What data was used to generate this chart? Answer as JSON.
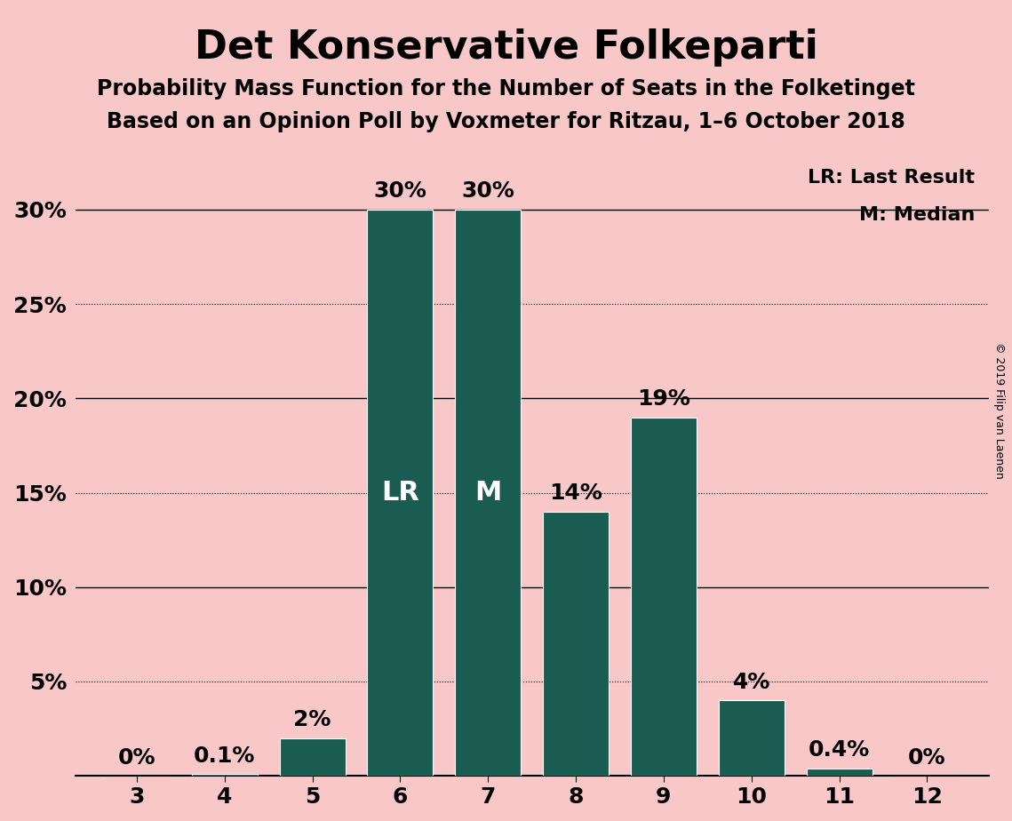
{
  "title": "Det Konservative Folkeparti",
  "subtitle1": "Probability Mass Function for the Number of Seats in the Folketinget",
  "subtitle2": "Based on an Opinion Poll by Voxmeter for Ritzau, 1–6 October 2018",
  "copyright": "© 2019 Filip van Laenen",
  "categories": [
    3,
    4,
    5,
    6,
    7,
    8,
    9,
    10,
    11,
    12
  ],
  "values": [
    0.0,
    0.1,
    2.0,
    30.0,
    30.0,
    14.0,
    19.0,
    4.0,
    0.4,
    0.0
  ],
  "bar_color": "#1a5c52",
  "background_color": "#f8c8c8",
  "LR_seat": 6,
  "M_seat": 7,
  "ylim": [
    0,
    33
  ],
  "legend_lr": "LR: Last Result",
  "legend_m": "M: Median",
  "title_fontsize": 32,
  "subtitle_fontsize": 17,
  "bar_label_fontsize": 18,
  "axis_fontsize": 18,
  "inside_label_fontsize": 22
}
